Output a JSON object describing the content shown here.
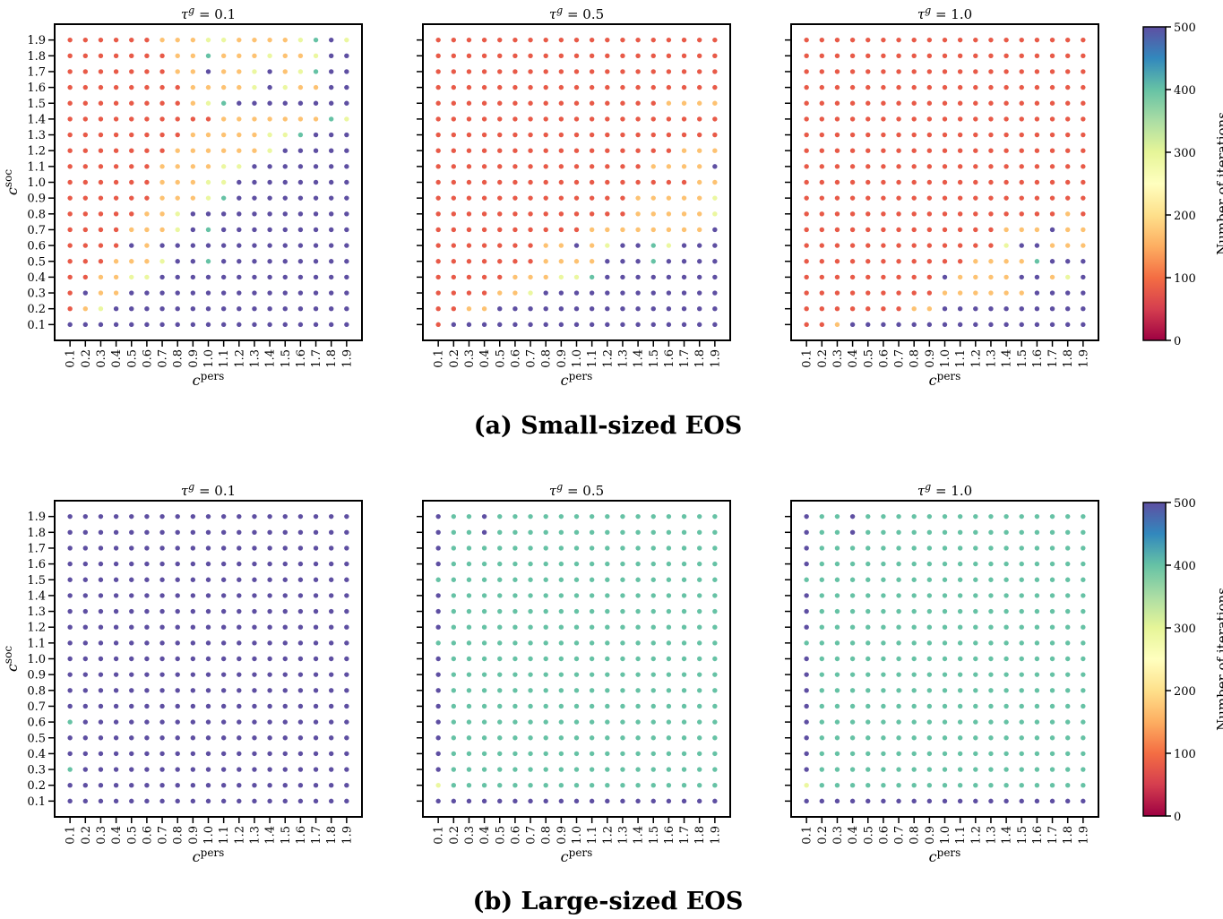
{
  "captions": [
    "(a) Small-sized EOS",
    "(b) Large-sized EOS"
  ],
  "chart_data": [
    {
      "type": "scatter",
      "panel": "(a) Small-sized EOS",
      "title": "τ^g = 0.1",
      "xlabel": "c^pers",
      "ylabel": "c^soc",
      "x_ticks": [
        "0.1",
        "0.2",
        "0.3",
        "0.4",
        "0.5",
        "0.6",
        "0.7",
        "0.8",
        "0.9",
        "1.0",
        "1.1",
        "1.2",
        "1.3",
        "1.4",
        "1.5",
        "1.6",
        "1.7",
        "1.8",
        "1.9"
      ],
      "y_ticks": [
        "0.1",
        "0.2",
        "0.3",
        "0.4",
        "0.5",
        "0.6",
        "0.7",
        "0.8",
        "0.9",
        "1.0",
        "1.1",
        "1.2",
        "1.3",
        "1.4",
        "1.5",
        "1.6",
        "1.7",
        "1.8",
        "1.9"
      ],
      "xlim": [
        0.0,
        2.0
      ],
      "ylim": [
        0.0,
        2.0
      ],
      "colorbar_label": "Number of iterations",
      "colorbar_ticks": [
        "0",
        "100",
        "200",
        "300",
        "400",
        "500"
      ],
      "colorscale": "Spectral",
      "clim": [
        0,
        500
      ],
      "value_rows_top_to_bottom": [
        "1 1 1 1 1 1 2 2 2 3 3 2 2 2 2 3 4 5 3",
        "1 1 1 1 1 1 1 2 2 4 2 2 2 3 2 2 3 5 5",
        "1 1 1 1 1 1 1 2 2 5 2 2 3 5 2 3 4 5 5",
        "1 1 1 1 1 1 1 1 2 2 2 2 3 5 3 2 2 5 5",
        "1 1 1 1 1 1 1 1 2 3 4 5 5 5 5 5 5 5 5",
        "1 1 1 1 1 1 1 1 1 1 2 2 2 2 2 2 2 4 3",
        "1 1 1 1 1 1 1 1 2 2 2 2 2 3 3 4 5 5 5",
        "1 1 1 1 1 1 1 2 2 2 2 2 2 3 5 5 5 5 5",
        "1 1 1 1 1 1 2 2 2 2 3 3 5 5 5 5 5 5 5",
        "1 1 1 1 1 1 2 2 2 3 3 5 5 5 5 5 5 5 5",
        "1 1 1 1 1 1 2 2 2 3 4 5 5 5 5 5 5 5 5",
        "1 1 1 1 1 2 2 3 5 5 5 5 5 5 5 5 5 5 5",
        "1 1 1 1 2 2 2 3 5 4 5 5 5 5 5 5 5 5 5",
        "1 1 1 1 5 2 5 5 5 5 5 5 5 5 5 5 5 5 5",
        "1 1 1 2 2 2 3 5 5 4 5 5 5 5 5 5 5 5 5",
        "1 1 2 2 3 3 5 5 5 5 5 5 5 5 5 5 5 5 5",
        "1 5 2 2 5 5 5 5 5 5 5 5 5 5 5 5 5 5 5",
        "1 2 3 5 5 5 5 5 5 5 5 5 5 5 5 5 5 5 5",
        "5 5 5 5 5 5 5 5 5 5 5 5 5 5 5 5 5 5 5"
      ]
    },
    {
      "type": "scatter",
      "panel": "(a) Small-sized EOS",
      "title": "τ^g = 0.5",
      "xlabel": "c^pers",
      "ylabel": "",
      "x_ticks": [
        "0.1",
        "0.2",
        "0.3",
        "0.4",
        "0.5",
        "0.6",
        "0.7",
        "0.8",
        "0.9",
        "1.0",
        "1.1",
        "1.2",
        "1.3",
        "1.4",
        "1.5",
        "1.6",
        "1.7",
        "1.8",
        "1.9"
      ],
      "y_ticks": [],
      "xlim": [
        0.0,
        2.0
      ],
      "ylim": [
        0.0,
        2.0
      ],
      "colorscale": "Spectral",
      "clim": [
        0,
        500
      ],
      "value_rows_top_to_bottom": [
        "1 1 1 1 1 1 1 1 1 1 1 1 1 1 1 1 1 1 1",
        "1 1 1 1 1 1 1 1 1 1 1 1 1 1 1 1 1 1 1",
        "1 1 1 1 1 1 1 1 1 1 1 1 1 1 1 1 1 1 1",
        "1 1 1 1 1 1 1 1 1 1 1 1 1 1 1 1 1 1 1",
        "1 1 1 1 1 1 1 1 1 1 1 1 1 1 1 2 2 2 2",
        "1 1 1 1 1 1 1 1 1 1 1 1 1 1 1 1 1 1 1",
        "1 1 1 1 1 1 1 1 1 1 1 1 1 1 1 1 1 1 1",
        "1 1 1 1 1 1 1 1 1 1 1 1 1 1 1 1 2 2 2",
        "1 1 1 1 1 1 1 1 1 1 1 1 1 1 2 2 2 2 5",
        "1 1 1 1 1 1 1 1 1 1 1 1 1 1 1 1 1 2 2",
        "1 1 1 1 1 1 1 1 1 1 1 1 1 2 2 2 2 2 3",
        "1 1 1 1 1 1 1 1 1 1 1 1 1 2 2 2 2 2 3",
        "1 1 1 1 1 1 1 1 1 1 2 2 2 2 2 2 2 2 5",
        "1 1 1 1 1 1 1 2 2 5 2 3 5 5 4 3 5 5 5",
        "1 1 1 1 1 1 1 2 2 2 2 5 5 5 4 5 5 5 5",
        "1 1 1 1 1 2 2 2 3 3 4 5 5 5 5 5 5 5 5",
        "1 1 1 1 2 2 3 5 5 5 5 5 5 5 5 5 5 5 5",
        "1 1 2 2 5 5 5 5 5 5 5 5 5 5 5 5 5 5 5",
        "1 5 5 5 5 5 5 5 5 5 5 5 5 5 5 5 5 5 5"
      ]
    },
    {
      "type": "scatter",
      "panel": "(a) Small-sized EOS",
      "title": "τ^g = 1.0",
      "xlabel": "c^pers",
      "ylabel": "",
      "x_ticks": [
        "0.1",
        "0.2",
        "0.3",
        "0.4",
        "0.5",
        "0.6",
        "0.7",
        "0.8",
        "0.9",
        "1.0",
        "1.1",
        "1.2",
        "1.3",
        "1.4",
        "1.5",
        "1.6",
        "1.7",
        "1.8",
        "1.9"
      ],
      "y_ticks": [],
      "xlim": [
        0.0,
        2.0
      ],
      "ylim": [
        0.0,
        2.0
      ],
      "colorscale": "Spectral",
      "clim": [
        0,
        500
      ],
      "value_rows_top_to_bottom": [
        "1 1 1 1 1 1 1 1 1 1 1 1 1 1 1 1 1 1 1",
        "1 1 1 1 1 1 1 1 1 1 1 1 1 1 1 1 1 1 1",
        "1 1 1 1 1 1 1 1 1 1 1 1 1 1 1 1 1 1 1",
        "1 1 1 1 1 1 1 1 1 1 1 1 1 1 1 1 1 1 1",
        "1 1 1 1 1 1 1 1 1 1 1 1 1 1 1 1 1 1 1",
        "1 1 1 1 1 1 1 1 1 1 1 1 1 1 1 1 1 1 1",
        "1 1 1 1 1 1 1 1 1 1 1 1 1 1 1 1 1 1 1",
        "1 1 1 1 1 1 1 1 1 1 1 1 1 1 1 1 1 1 1",
        "1 1 1 1 1 1 1 1 1 1 1 1 1 1 1 1 1 1 1",
        "1 1 1 1 1 1 1 1 1 1 1 1 1 1 1 1 1 1 1",
        "1 1 1 1 1 1 1 1 1 1 1 1 1 1 1 1 1 1 1",
        "1 1 1 1 1 1 1 1 1 1 1 1 1 1 1 1 1 2 1",
        "1 1 1 1 1 1 1 1 1 1 1 1 1 2 2 2 5 2 2",
        "1 1 1 1 1 1 1 1 1 1 1 1 1 3 5 5 2 2 2",
        "1 1 1 1 1 1 1 1 1 1 1 2 2 2 2 4 5 5 5",
        "1 1 1 1 1 1 1 1 1 5 2 2 2 2 5 5 2 3 5",
        "1 1 1 1 1 1 1 1 1 2 2 2 2 2 2 5 5 5 5",
        "1 1 1 1 1 1 1 2 2 5 5 5 5 5 5 5 5 5 5",
        "1 1 2 5 5 5 5 5 5 5 5 5 5 5 5 5 5 5 5"
      ]
    },
    {
      "type": "scatter",
      "panel": "(b) Large-sized EOS",
      "title": "τ^g = 0.1",
      "xlabel": "c^pers",
      "ylabel": "c^soc",
      "x_ticks": [
        "0.1",
        "0.2",
        "0.3",
        "0.4",
        "0.5",
        "0.6",
        "0.7",
        "0.8",
        "0.9",
        "1.0",
        "1.1",
        "1.2",
        "1.3",
        "1.4",
        "1.5",
        "1.6",
        "1.7",
        "1.8",
        "1.9"
      ],
      "y_ticks": [
        "0.1",
        "0.2",
        "0.3",
        "0.4",
        "0.5",
        "0.6",
        "0.7",
        "0.8",
        "0.9",
        "1.0",
        "1.1",
        "1.2",
        "1.3",
        "1.4",
        "1.5",
        "1.6",
        "1.7",
        "1.8",
        "1.9"
      ],
      "xlim": [
        0.0,
        2.0
      ],
      "ylim": [
        0.0,
        2.0
      ],
      "colorbar_label": "Number of iterations",
      "colorbar_ticks": [
        "0",
        "100",
        "200",
        "300",
        "400",
        "500"
      ],
      "colorscale": "Spectral",
      "clim": [
        0,
        500
      ],
      "value_rows_top_to_bottom": [
        "5 5 5 5 5 5 5 5 5 5 5 5 5 5 5 5 5 5 5",
        "5 5 5 5 5 5 5 5 5 5 5 5 5 5 5 5 5 5 5",
        "5 5 5 5 5 5 5 5 5 5 5 5 5 5 5 5 5 5 5",
        "5 5 5 5 5 5 5 5 5 5 5 5 5 5 5 5 5 5 5",
        "5 5 5 5 5 5 5 5 5 5 5 5 5 5 5 5 5 5 5",
        "5 5 5 5 5 5 5 5 5 5 5 5 5 5 5 5 5 5 5",
        "5 5 5 5 5 5 5 5 5 5 5 5 5 5 5 5 5 5 5",
        "5 5 5 5 5 5 5 5 5 5 5 5 5 5 5 5 5 5 5",
        "5 5 5 5 5 5 5 5 5 5 5 5 5 5 5 5 5 5 5",
        "5 5 5 5 5 5 5 5 5 5 5 5 5 5 5 5 5 5 5",
        "5 5 5 5 5 5 5 5 5 5 5 5 5 5 5 5 5 5 5",
        "5 5 5 5 5 5 5 5 5 5 5 5 5 5 5 5 5 5 5",
        "5 5 5 5 5 5 5 5 5 5 5 5 5 5 5 5 5 5 5",
        "4 5 5 5 5 5 5 5 5 5 5 5 5 5 5 5 5 5 5",
        "5 5 5 5 5 5 5 5 5 5 5 5 5 5 5 5 5 5 5",
        "5 5 5 5 5 5 5 5 5 5 5 5 5 5 5 5 5 5 5",
        "4 5 5 5 5 5 5 5 5 5 5 5 5 5 5 5 5 5 5",
        "5 5 5 5 5 5 5 5 5 5 5 5 5 5 5 5 5 5 5",
        "5 5 5 5 5 5 5 5 5 5 5 5 5 5 5 5 5 5 5"
      ]
    },
    {
      "type": "scatter",
      "panel": "(b) Large-sized EOS",
      "title": "τ^g = 0.5",
      "xlabel": "c^pers",
      "ylabel": "",
      "x_ticks": [
        "0.1",
        "0.2",
        "0.3",
        "0.4",
        "0.5",
        "0.6",
        "0.7",
        "0.8",
        "0.9",
        "1.0",
        "1.1",
        "1.2",
        "1.3",
        "1.4",
        "1.5",
        "1.6",
        "1.7",
        "1.8",
        "1.9"
      ],
      "y_ticks": [],
      "xlim": [
        0.0,
        2.0
      ],
      "ylim": [
        0.0,
        2.0
      ],
      "colorscale": "Spectral",
      "clim": [
        0,
        500
      ],
      "value_rows_top_to_bottom": [
        "5 4 4 5 4 4 4 4 4 4 4 4 4 4 4 4 4 4 4",
        "5 4 4 5 4 4 4 4 4 4 4 4 4 4 4 4 4 4 4",
        "5 4 4 4 4 4 4 4 4 4 4 4 4 4 4 4 4 4 4",
        "5 4 4 4 4 4 4 4 4 4 4 4 4 4 4 4 4 4 4",
        "4 4 4 4 4 4 4 4 4 4 4 4 4 4 4 4 4 4 4",
        "5 4 4 4 4 4 4 4 4 4 4 4 4 4 4 4 4 4 4",
        "5 4 4 4 4 4 4 4 4 4 4 4 4 4 4 4 4 4 4",
        "5 4 4 4 4 4 4 4 4 4 4 4 4 4 4 4 4 4 4",
        "4 4 4 4 4 4 4 4 4 4 4 4 4 4 4 4 4 4 4",
        "5 4 4 4 4 4 4 4 4 4 4 4 4 4 4 4 4 4 4",
        "5 4 4 4 4 4 4 4 4 4 4 4 4 4 4 4 4 4 4",
        "5 4 4 4 4 4 4 4 4 4 4 4 4 4 4 4 4 4 4",
        "5 4 4 4 4 4 4 4 4 4 4 4 4 4 4 4 4 4 4",
        "5 4 4 4 4 4 4 4 4 4 4 4 4 4 4 4 4 4 4",
        "5 4 4 4 4 4 4 4 4 4 4 4 4 4 4 4 4 4 4",
        "5 4 4 4 4 4 4 4 4 4 4 4 4 4 4 4 4 4 4",
        "5 4 4 4 4 4 4 4 4 4 4 4 4 4 4 4 4 4 4",
        "3 4 4 4 4 4 4 4 4 4 4 4 4 4 4 4 4 4 4",
        "5 5 5 5 5 5 5 5 5 5 5 5 5 5 5 5 5 5 5"
      ]
    },
    {
      "type": "scatter",
      "panel": "(b) Large-sized EOS",
      "title": "τ^g = 1.0",
      "xlabel": "c^pers",
      "ylabel": "",
      "x_ticks": [
        "0.1",
        "0.2",
        "0.3",
        "0.4",
        "0.5",
        "0.6",
        "0.7",
        "0.8",
        "0.9",
        "1.0",
        "1.1",
        "1.2",
        "1.3",
        "1.4",
        "1.5",
        "1.6",
        "1.7",
        "1.8",
        "1.9"
      ],
      "y_ticks": [],
      "xlim": [
        0.0,
        2.0
      ],
      "ylim": [
        0.0,
        2.0
      ],
      "colorbar_label": "Number of iterations",
      "colorbar_ticks": [
        "0",
        "100",
        "200",
        "300",
        "400",
        "500"
      ],
      "colorscale": "Spectral",
      "clim": [
        0,
        500
      ],
      "value_rows_top_to_bottom": [
        "5 4 4 5 4 4 4 4 4 4 4 4 4 4 4 4 4 4 4",
        "5 4 4 5 4 4 4 4 4 4 4 4 4 4 4 4 4 4 4",
        "5 4 4 4 4 4 4 4 4 4 4 4 4 4 4 4 4 4 4",
        "5 4 4 4 4 4 4 4 4 4 4 4 4 4 4 4 4 4 4",
        "4 4 4 4 4 4 4 4 4 4 4 4 4 4 4 4 4 4 4",
        "5 4 4 4 4 4 4 4 4 4 4 4 4 4 4 4 4 4 4",
        "5 4 4 4 4 4 4 4 4 4 4 4 4 4 4 4 4 4 4",
        "5 4 4 4 4 4 4 4 4 4 4 4 4 4 4 4 4 4 4",
        "4 4 4 4 4 4 4 4 4 4 4 4 4 4 4 4 4 4 4",
        "5 4 4 4 4 4 4 4 4 4 4 4 4 4 4 4 4 4 4",
        "5 4 4 4 4 4 4 4 4 4 4 4 4 4 4 4 4 4 4",
        "5 4 4 4 4 4 4 4 4 4 4 4 4 4 4 4 4 4 4",
        "5 4 4 4 4 4 4 4 4 4 4 4 4 4 4 4 4 4 4",
        "5 4 4 4 4 4 4 4 4 4 4 4 4 4 4 4 4 4 4",
        "5 4 4 4 4 4 4 4 4 4 4 4 4 4 4 4 4 4 4",
        "5 4 4 4 4 4 4 4 4 4 4 4 4 4 4 4 4 4 4",
        "5 4 4 4 4 4 4 4 4 4 4 4 4 4 4 4 4 4 4",
        "3 4 4 4 4 4 4 4 4 4 4 4 4 4 4 4 4 4 4",
        "5 5 5 5 5 5 5 5 5 5 5 5 5 5 5 5 5 5 5"
      ]
    }
  ],
  "value_levels": {
    "1": 80,
    "2": 170,
    "3": 290,
    "4": 400,
    "5": 500
  }
}
